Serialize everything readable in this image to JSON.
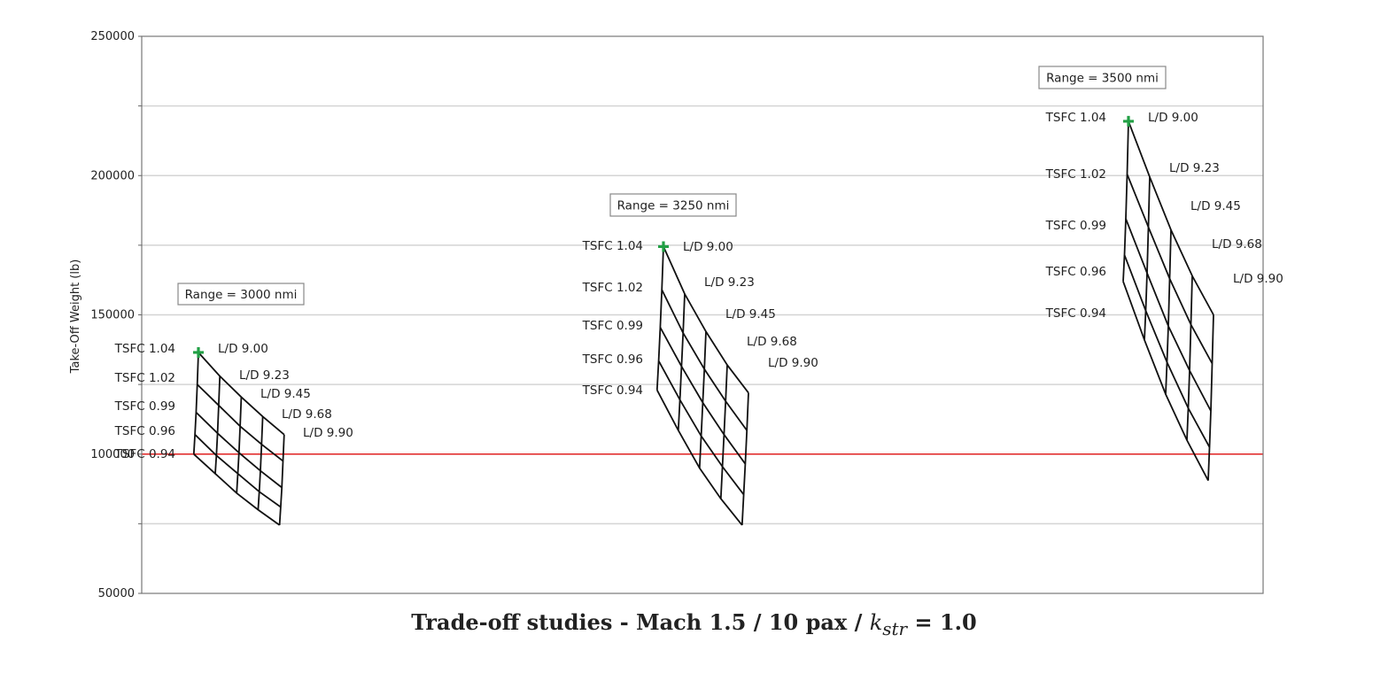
{
  "chart_data": {
    "type": "scatter",
    "title": "Trade-off studies - Mach 1.5 / 10 pax / ",
    "title_math": "k",
    "title_math_sub": "str",
    "title_suffix": " = 1.0",
    "ylabel": "Take-Off Weight (lb)",
    "xlabel": "",
    "ylim": [
      50000,
      250000
    ],
    "yticks": [
      50000,
      100000,
      150000,
      200000,
      250000
    ],
    "grid": true,
    "reference_line": {
      "y": 100000,
      "color": "#e02020"
    },
    "baseline_marker_color": "#22a045",
    "carpets": [
      {
        "range_label": "Range = 3000 nmi",
        "tsfc_labels": [
          "TSFC  1.04",
          "TSFC  1.02",
          "TSFC  0.99",
          "TSFC  0.96",
          "TSFC  0.94"
        ],
        "ld_labels": [
          "L/D  9.00",
          "L/D  9.23",
          "L/D  9.45",
          "L/D  9.68",
          "L/D  9.90"
        ],
        "baseline": 136500,
        "points": [
          [
            136500,
            128000,
            120500,
            113500,
            107000
          ],
          [
            125000,
            117500,
            110000,
            103500,
            97500
          ],
          [
            115000,
            107500,
            100500,
            94000,
            88000
          ],
          [
            107000,
            99500,
            93000,
            86500,
            81000
          ],
          [
            100000,
            93000,
            86000,
            80000,
            74500
          ]
        ]
      },
      {
        "range_label": "Range = 3250 nmi",
        "tsfc_labels": [
          "TSFC  1.04",
          "TSFC  1.02",
          "TSFC  0.99",
          "TSFC  0.96",
          "TSFC  0.94"
        ],
        "ld_labels": [
          "L/D  9.00",
          "L/D  9.23",
          "L/D  9.45",
          "L/D  9.68",
          "L/D  9.90"
        ],
        "baseline": 174500,
        "points": [
          [
            174500,
            157500,
            144000,
            132000,
            122000
          ],
          [
            159000,
            143500,
            130500,
            119000,
            108500
          ],
          [
            145500,
            131500,
            118500,
            107000,
            96500
          ],
          [
            133500,
            119500,
            106500,
            95500,
            85500
          ],
          [
            123000,
            108500,
            95000,
            84000,
            74500
          ]
        ]
      },
      {
        "range_label": "Range = 3500 nmi",
        "tsfc_labels": [
          "TSFC  1.04",
          "TSFC  1.02",
          "TSFC  0.99",
          "TSFC  0.96",
          "TSFC  0.94"
        ],
        "ld_labels": [
          "L/D  9.00",
          "L/D  9.23",
          "L/D  9.45",
          "L/D  9.68",
          "L/D  9.90"
        ],
        "baseline": 219500,
        "points": [
          [
            219500,
            199500,
            180500,
            164000,
            150000
          ],
          [
            200500,
            181500,
            163000,
            146500,
            132500
          ],
          [
            184500,
            165000,
            146000,
            130000,
            115500
          ],
          [
            171500,
            151500,
            133000,
            116500,
            102500
          ],
          [
            162000,
            141000,
            121500,
            105000,
            90500
          ]
        ]
      }
    ]
  }
}
